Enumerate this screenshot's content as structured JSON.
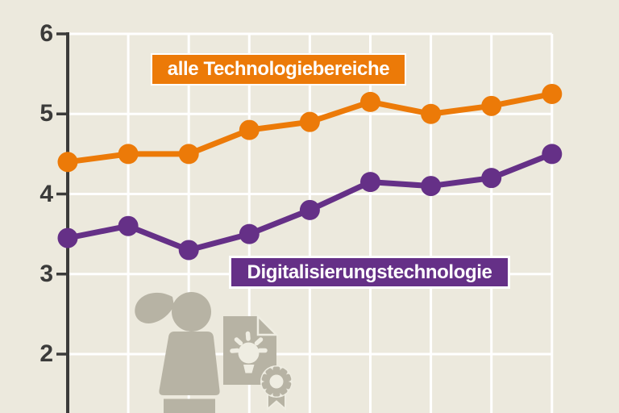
{
  "colors": {
    "background": "#ECE9DD",
    "background_cutout": "#EFEDE2",
    "grid": "#FFFFFF",
    "axis": "#3B3B3A",
    "orange": "#EC7A08",
    "purple": "#653087",
    "figure_gray": "#B7B3A4",
    "label_text": "#FFFFFF"
  },
  "chart_data": {
    "type": "line",
    "title": "",
    "y_ticks": [
      6,
      5,
      4,
      3,
      2
    ],
    "x_tick_labels": [],
    "grid": true,
    "legend_position": "inline-labels-on-plot",
    "series": [
      {
        "id": "alle",
        "name": "alle Technologiebereiche",
        "color": "#EC7A08",
        "values": [
          4.4,
          4.5,
          4.5,
          4.8,
          4.9,
          5.15,
          5.0,
          5.1,
          5.25
        ]
      },
      {
        "id": "digital",
        "name": "Digitalisierungstechnologie",
        "color": "#653087",
        "values": [
          3.45,
          3.6,
          3.3,
          3.5,
          3.8,
          4.15,
          4.1,
          4.2,
          4.5
        ]
      }
    ]
  },
  "icons": {
    "woman": "woman-silhouette-icon",
    "certificate": "certificate-lightbulb-icon",
    "award": "award-ribbon-icon"
  }
}
